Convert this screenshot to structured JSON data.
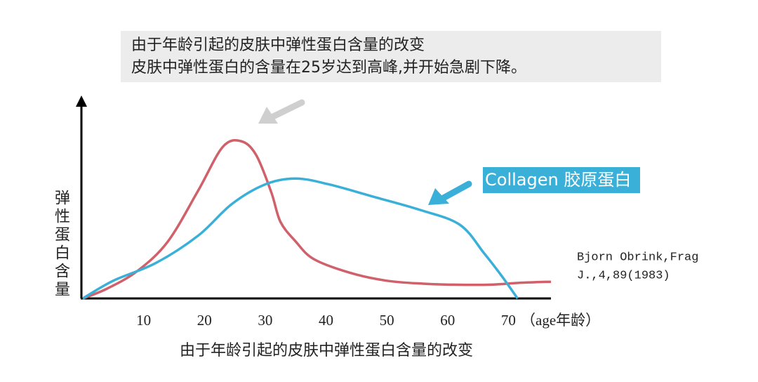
{
  "chart_data": {
    "type": "line",
    "title": "由于年龄引起的皮肤中弹性蛋白含量的改变",
    "subtitle": "皮肤中弹性蛋白的含量在25岁达到高峰,并开始急剧下降。",
    "y_label": "弹性蛋白含量",
    "x_label": "（age年龄）",
    "caption": "由于年龄引起的皮肤中弹性蛋白含量的改变",
    "annotation": [
      "Bjorn Obrink,Frag",
      "J.,4,89(1983)"
    ],
    "xlim": [
      0,
      77
    ],
    "xticks": [
      10,
      20,
      30,
      40,
      50,
      60,
      70
    ],
    "ylim": [
      0,
      100
    ],
    "series": [
      {
        "color": "#d0606a",
        "x": [
          0,
          4,
          9,
          14,
          19,
          23,
          26,
          28.5,
          31,
          32.5,
          35,
          38,
          44,
          50,
          56,
          61,
          67,
          72,
          77
        ],
        "values": [
          0,
          5,
          14,
          29,
          55,
          77,
          80,
          73,
          54,
          39,
          29,
          20,
          13,
          9,
          7.5,
          7,
          7,
          8,
          8.5
        ]
      },
      {
        "name": "Collagen 胶原蛋白",
        "color": "#3ab0d8",
        "x": [
          0,
          5,
          12,
          19,
          24.5,
          30,
          35,
          40.5,
          47.5,
          55.5,
          62,
          66,
          69,
          71.5
        ],
        "values": [
          0,
          9,
          18,
          32,
          48,
          58,
          61,
          58,
          52,
          45,
          37.5,
          23,
          11,
          0
        ]
      }
    ]
  }
}
